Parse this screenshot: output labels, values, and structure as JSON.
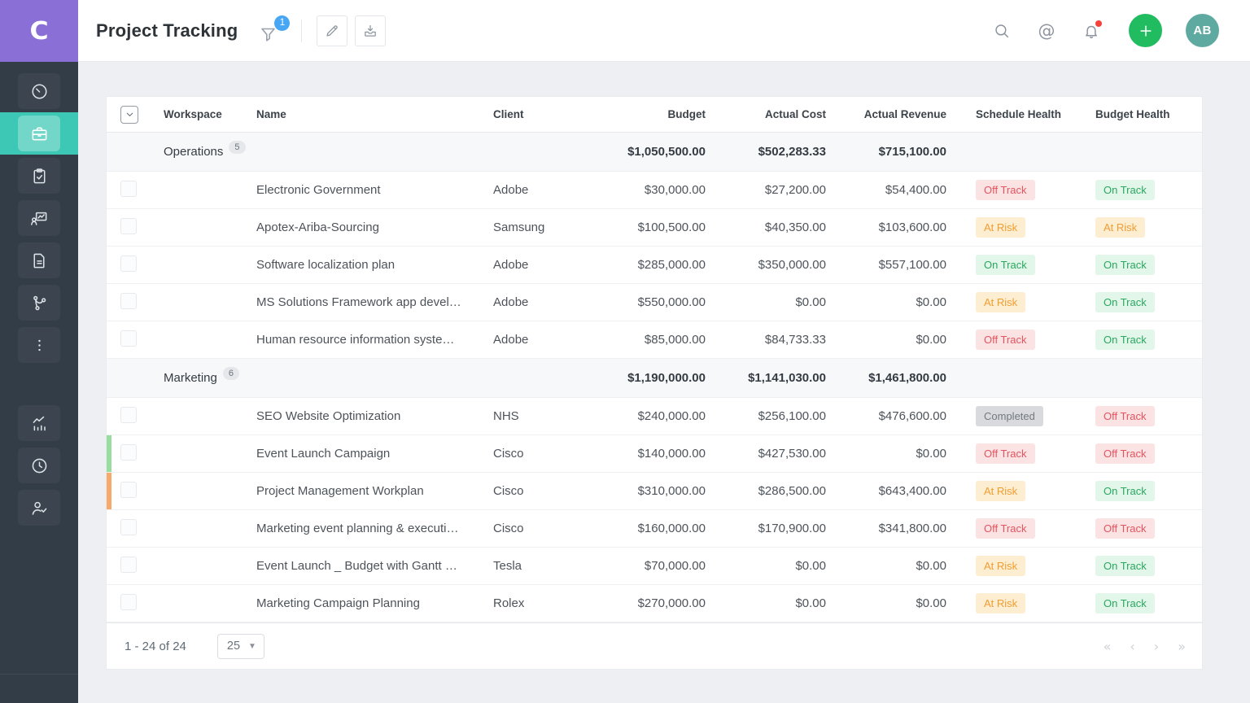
{
  "brand": {
    "logo_letter": "C"
  },
  "header": {
    "title": "Project Tracking",
    "filter_badge": "1",
    "avatar_initials": "AB"
  },
  "icons": {
    "sidebar": [
      "dashboard-icon",
      "projects-briefcase-icon",
      "tasks-clipboard-icon",
      "resources-presentation-icon",
      "documents-icon",
      "workflow-branch-icon",
      "more-ellipsis-icon",
      "analytics-chart-icon",
      "timesheet-clock-icon",
      "approvals-person-check-icon"
    ],
    "toolbar": [
      "filter-funnel-icon",
      "edit-pencil-icon",
      "export-download-icon"
    ],
    "topbar_right": [
      "search-icon",
      "mentions-at-icon",
      "notifications-bell-icon",
      "add-plus-icon",
      "avatar"
    ]
  },
  "colors": {
    "logo_purple": "#8a6fd6",
    "sidebar_bg": "#333d48",
    "active_teal": "#3cc8b4",
    "filter_badge_blue": "#47a7f5",
    "add_button_green": "#21bb60",
    "avatar_teal": "#5faaa0",
    "status_on_track": "#2aa85f",
    "status_at_risk": "#f09d32",
    "status_off_track": "#e25560",
    "status_completed": "#73797f",
    "row_marker_green": "#97dd9d",
    "row_marker_orange": "#f6a96b"
  },
  "table": {
    "columns": [
      "Workspace",
      "Name",
      "Client",
      "Budget",
      "Actual Cost",
      "Actual Revenue",
      "Schedule Health",
      "Budget Health"
    ],
    "groups": [
      {
        "name": "Operations",
        "count": "5",
        "budget": "$1,050,500.00",
        "actual_cost": "$502,283.33",
        "actual_revenue": "$715,100.00",
        "rows": [
          {
            "name": "Electronic Government",
            "client": "Adobe",
            "budget": "$30,000.00",
            "actual_cost": "$27,200.00",
            "actual_revenue": "$54,400.00",
            "schedule_health": "Off Track",
            "budget_health": "On Track",
            "marker": ""
          },
          {
            "name": "Apotex-Ariba-Sourcing",
            "client": "Samsung",
            "budget": "$100,500.00",
            "actual_cost": "$40,350.00",
            "actual_revenue": "$103,600.00",
            "schedule_health": "At Risk",
            "budget_health": "At Risk",
            "marker": ""
          },
          {
            "name": "Software localization plan",
            "client": "Adobe",
            "budget": "$285,000.00",
            "actual_cost": "$350,000.00",
            "actual_revenue": "$557,100.00",
            "schedule_health": "On Track",
            "budget_health": "On Track",
            "marker": ""
          },
          {
            "name": "MS Solutions Framework app devel…",
            "client": "Adobe",
            "budget": "$550,000.00",
            "actual_cost": "$0.00",
            "actual_revenue": "$0.00",
            "schedule_health": "At Risk",
            "budget_health": "On Track",
            "marker": ""
          },
          {
            "name": "Human resource information syste…",
            "client": "Adobe",
            "budget": "$85,000.00",
            "actual_cost": "$84,733.33",
            "actual_revenue": "$0.00",
            "schedule_health": "Off Track",
            "budget_health": "On Track",
            "marker": ""
          }
        ]
      },
      {
        "name": "Marketing",
        "count": "6",
        "budget": "$1,190,000.00",
        "actual_cost": "$1,141,030.00",
        "actual_revenue": "$1,461,800.00",
        "rows": [
          {
            "name": "SEO Website Optimization",
            "client": "NHS",
            "budget": "$240,000.00",
            "actual_cost": "$256,100.00",
            "actual_revenue": "$476,600.00",
            "schedule_health": "Completed",
            "budget_health": "Off Track",
            "marker": ""
          },
          {
            "name": "Event Launch Campaign",
            "client": "Cisco",
            "budget": "$140,000.00",
            "actual_cost": "$427,530.00",
            "actual_revenue": "$0.00",
            "schedule_health": "Off Track",
            "budget_health": "Off Track",
            "marker": "green"
          },
          {
            "name": "Project Management Workplan",
            "client": "Cisco",
            "budget": "$310,000.00",
            "actual_cost": "$286,500.00",
            "actual_revenue": "$643,400.00",
            "schedule_health": "At Risk",
            "budget_health": "On Track",
            "marker": "orange"
          },
          {
            "name": "Marketing event planning & executi…",
            "client": "Cisco",
            "budget": "$160,000.00",
            "actual_cost": "$170,900.00",
            "actual_revenue": "$341,800.00",
            "schedule_health": "Off Track",
            "budget_health": "Off Track",
            "marker": ""
          },
          {
            "name": "Event Launch _ Budget with Gantt …",
            "client": "Tesla",
            "budget": "$70,000.00",
            "actual_cost": "$0.00",
            "actual_revenue": "$0.00",
            "schedule_health": "At Risk",
            "budget_health": "On Track",
            "marker": ""
          },
          {
            "name": "Marketing Campaign Planning",
            "client": "Rolex",
            "budget": "$270,000.00",
            "actual_cost": "$0.00",
            "actual_revenue": "$0.00",
            "schedule_health": "At Risk",
            "budget_health": "On Track",
            "marker": ""
          }
        ]
      }
    ]
  },
  "footer": {
    "range_text": "1 - 24 of 24",
    "page_size": "25",
    "pagination": [
      "«",
      "‹",
      "›",
      "»"
    ]
  }
}
